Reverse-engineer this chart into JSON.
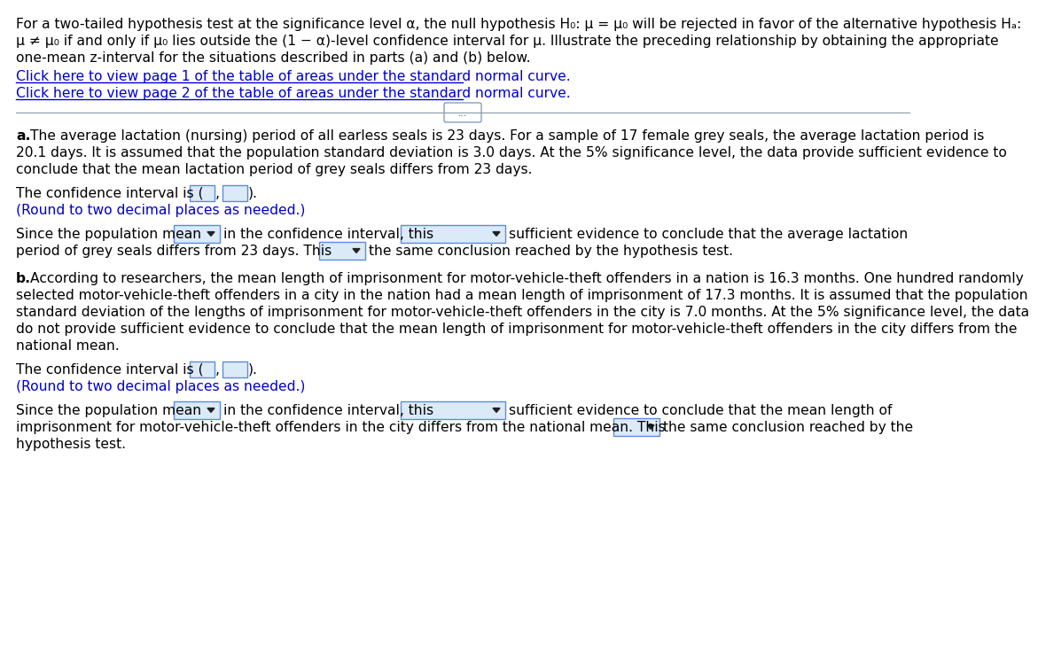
{
  "bg_color": "#ffffff",
  "text_color": "#000000",
  "link_color": "#0000cc",
  "box_edge_color": "#5b8dd9",
  "box_face_color": "#dce9f7",
  "divider_color": "#8899aa",
  "font_size": 11.2,
  "header_lines": [
    "For a two-tailed hypothesis test at the significance level α, the null hypothesis H₀: μ = μ₀ will be rejected in favor of the alternative hypothesis Hₐ:",
    "μ ≠ μ₀ if and only if μ₀ lies outside the (1 − α)-level confidence interval for μ. Illustrate the preceding relationship by obtaining the appropriate",
    "one-mean z-interval for the situations described in parts (a) and (b) below."
  ],
  "link1": "Click here to view page 1 of the table of areas under the standard normal curve.",
  "link2": "Click here to view page 2 of the table of areas under the standard normal curve.",
  "ellipsis_text": "...",
  "part_a_text": [
    "The average lactation (nursing) period of all earless seals is 23 days. For a sample of 17 female grey seals, the average lactation period is",
    "20.1 days. It is assumed that the population standard deviation is 3.0 days. At the 5% significance level, the data provide sufficient evidence to",
    "conclude that the mean lactation period of grey seals differs from 23 days."
  ],
  "part_b_text": [
    "According to researchers, the mean length of imprisonment for motor-vehicle-theft offenders in a nation is 16.3 months. One hundred randomly",
    "selected motor-vehicle-theft offenders in a city in the nation had a mean length of imprisonment of 17.3 months. It is assumed that the population",
    "standard deviation of the lengths of imprisonment for motor-vehicle-theft offenders in the city is 7.0 months. At the 5% significance level, the data",
    "do not provide sufficient evidence to conclude that the mean length of imprisonment for motor-vehicle-theft offenders in the city differs from the",
    "national mean."
  ],
  "round_note": "(Round to two decimal places as needed.)"
}
